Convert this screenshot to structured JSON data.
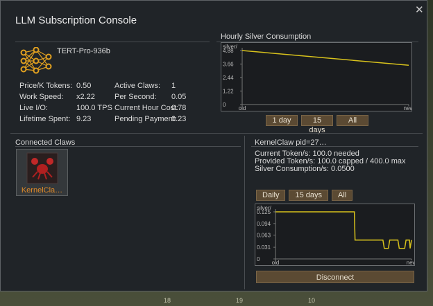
{
  "window": {
    "title": "LLM Subscription Console",
    "close": "✕"
  },
  "model": {
    "name": "TERT-Pro-936b",
    "stats": [
      [
        "Price/K Tokens:",
        "0.50",
        "Active Claws:",
        "1"
      ],
      [
        "Work Speed:",
        "x2.22",
        "Per Second:",
        "0.05"
      ],
      [
        "Live I/O:",
        "100.0 TPS",
        "Current Hour Cost:",
        "0.78"
      ],
      [
        "Lifetime Spent:",
        "9.23",
        "Pending Payment:",
        "0.23"
      ]
    ]
  },
  "consumption_chart": {
    "type": "line",
    "title": "Hourly Silver Consumption",
    "y_label": "silver/",
    "x": [
      0,
      1
    ],
    "series": [
      {
        "color": "#d8c21c",
        "values": [
          4.88,
          3.55
        ]
      }
    ],
    "xlim": [
      0,
      1
    ],
    "xticks": [
      {
        "value": 0,
        "label": "old"
      },
      {
        "value": 1,
        "label": "new"
      }
    ],
    "ylim": [
      0,
      4.88
    ],
    "yticks": [
      0,
      1.22,
      2.44,
      3.66,
      4.88
    ],
    "buttons": [
      "1 day",
      "15 days",
      "All"
    ]
  },
  "connected_claws": {
    "title": "Connected Claws",
    "items": [
      {
        "label": "KernelCla…"
      }
    ]
  },
  "claw_detail": {
    "title": "KernelClaw pid=27…",
    "lines": [
      "Current Token/s: 100.0 needed",
      "Provided Token/s: 100.0 capped / 400.0 max",
      "Silver Consumption/s: 0.0500"
    ],
    "buttons": [
      "Daily",
      "15 days",
      "All"
    ],
    "chart": {
      "type": "line",
      "y_label": "silver/",
      "x": [
        0,
        0.58,
        0.585,
        0.79,
        0.8,
        0.83,
        0.84,
        0.9,
        0.91,
        0.95,
        0.96,
        0.985,
        0.99,
        1
      ],
      "series": [
        {
          "color": "#d8c21c",
          "values": [
            0.125,
            0.125,
            0.05,
            0.05,
            0.028,
            0.028,
            0.05,
            0.05,
            0.028,
            0.028,
            0.05,
            0.05,
            0.028,
            0.05
          ]
        }
      ],
      "xlim": [
        0,
        1
      ],
      "xticks": [
        {
          "value": 0,
          "label": "old"
        },
        {
          "value": 1,
          "label": "new"
        }
      ],
      "ylim": [
        0,
        0.125
      ],
      "yticks": [
        0,
        0.031,
        0.063,
        0.094,
        0.125
      ]
    },
    "action": "Disconnect"
  },
  "background": {
    "labels": [
      "18",
      "19",
      "10"
    ]
  }
}
